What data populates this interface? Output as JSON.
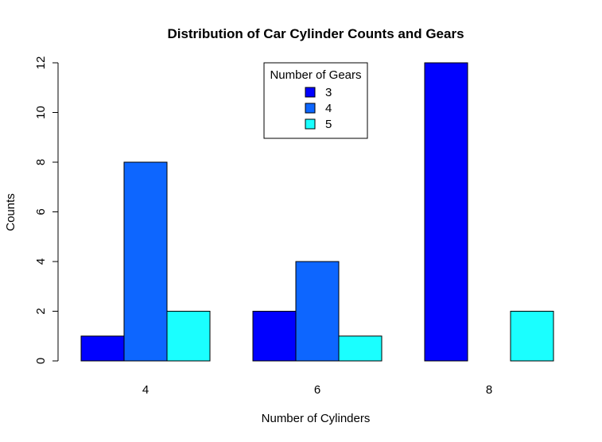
{
  "chart_data": {
    "type": "bar",
    "title": "Distribution of Car Cylinder Counts and Gears",
    "xlabel": "Number of Cylinders",
    "ylabel": "Counts",
    "categories": [
      "4",
      "6",
      "8"
    ],
    "series": [
      {
        "name": "3",
        "color": "#0000FF",
        "values": [
          1,
          2,
          12
        ]
      },
      {
        "name": "4",
        "color": "#0D66FF",
        "values": [
          8,
          4,
          0
        ]
      },
      {
        "name": "5",
        "color": "#1AFFFF",
        "values": [
          2,
          1,
          2
        ]
      }
    ],
    "ylim": [
      0,
      12
    ],
    "yticks": [
      "0",
      "2",
      "4",
      "6",
      "8",
      "10",
      "12"
    ],
    "legend": {
      "title": "Number of Gears",
      "placement": "top-center"
    },
    "grid": false
  }
}
